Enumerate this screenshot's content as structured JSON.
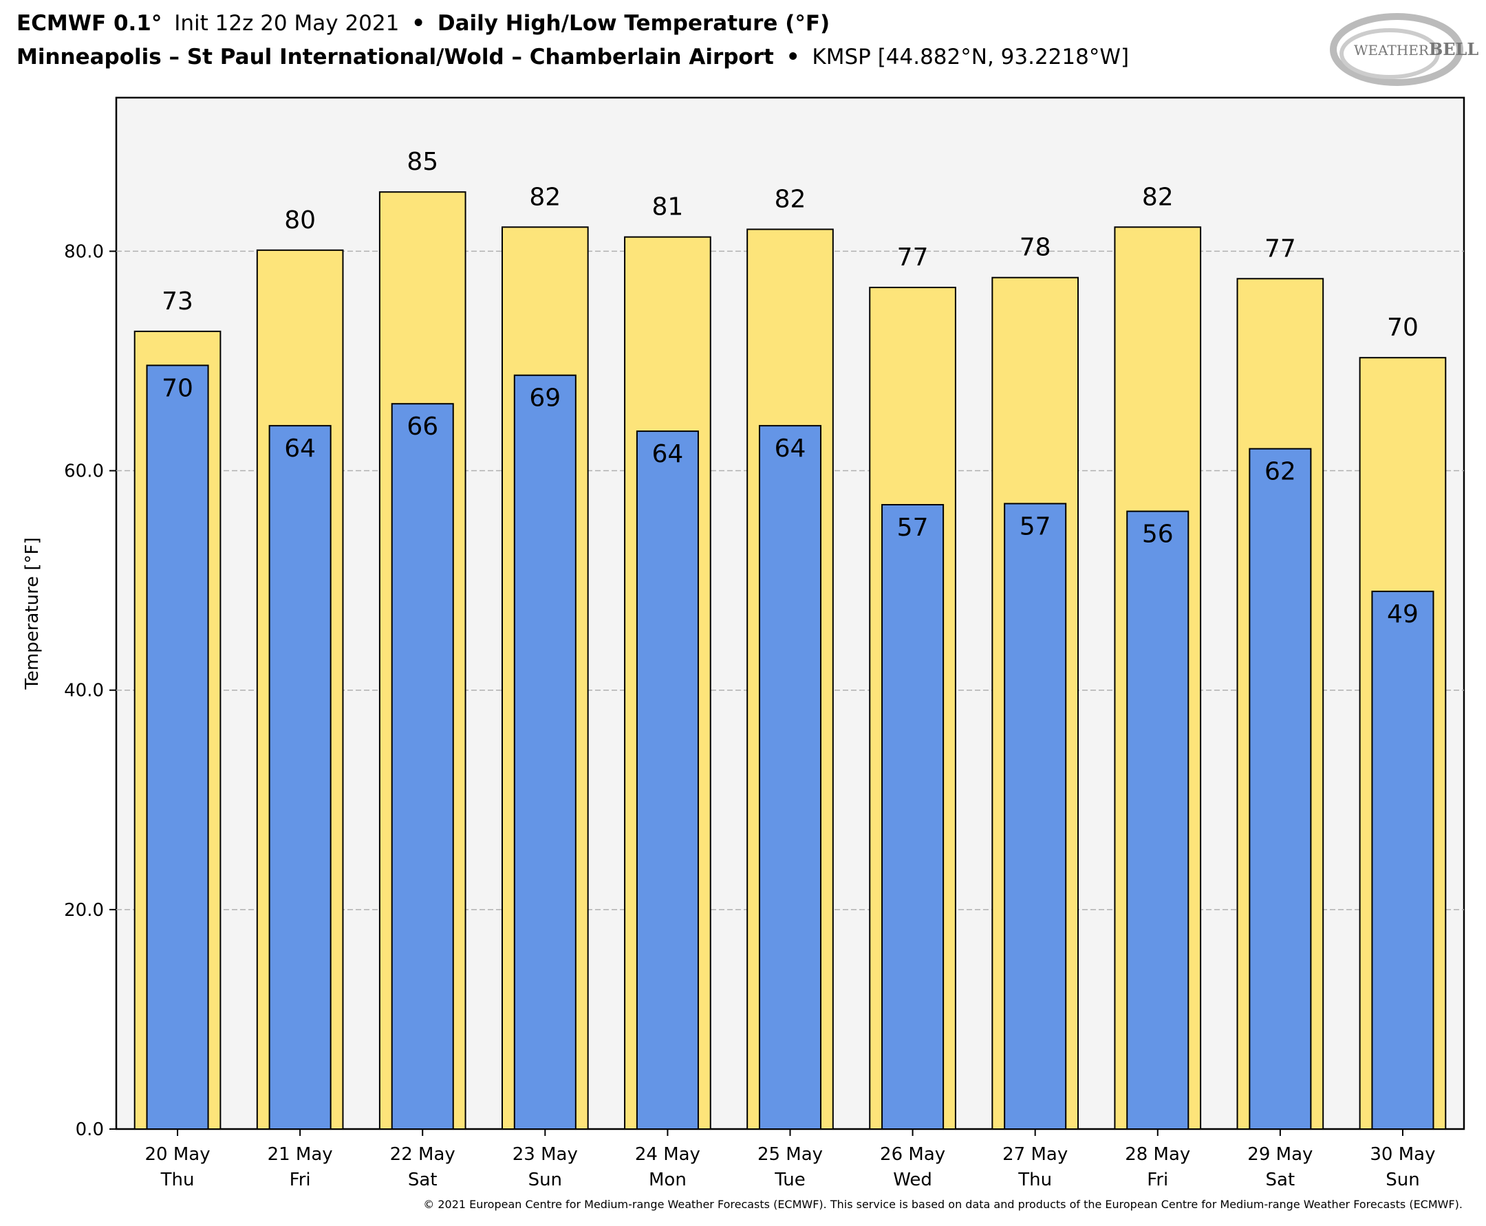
{
  "header": {
    "model": "ECMWF 0.1°",
    "init": "Init 12z 20 May 2021",
    "sep": "•",
    "product": "Daily High/Low Temperature (°F)",
    "station": "Minneapolis – St Paul International/Wold – Chamberlain Airport",
    "station_id": "KMSP [44.882°N, 93.2218°W]"
  },
  "logo": {
    "text_left": "WEATHER",
    "text_right": "BELL"
  },
  "footer": {
    "copyright": "© 2021 European Centre for Medium-range Weather Forecasts (ECMWF). This service is based on data and products of the European Centre for Medium-range Weather Forecasts (ECMWF)."
  },
  "chart_data": {
    "type": "bar",
    "title": "Daily High/Low Temperature (°F)",
    "xlabel": "",
    "ylabel": "Temperature [°F]",
    "ylim": [
      0,
      94
    ],
    "yticks": [
      0,
      20,
      40,
      60,
      80
    ],
    "ytick_labels": [
      "0.0",
      "20.0",
      "40.0",
      "60.0",
      "80.0"
    ],
    "grid": true,
    "categories": [
      {
        "date": "20 May",
        "day": "Thu"
      },
      {
        "date": "21 May",
        "day": "Fri"
      },
      {
        "date": "22 May",
        "day": "Sat"
      },
      {
        "date": "23 May",
        "day": "Sun"
      },
      {
        "date": "24 May",
        "day": "Mon"
      },
      {
        "date": "25 May",
        "day": "Tue"
      },
      {
        "date": "26 May",
        "day": "Wed"
      },
      {
        "date": "27 May",
        "day": "Thu"
      },
      {
        "date": "28 May",
        "day": "Fri"
      },
      {
        "date": "29 May",
        "day": "Sat"
      },
      {
        "date": "30 May",
        "day": "Sun"
      }
    ],
    "series": [
      {
        "name": "High",
        "color": "#fde47a",
        "values": [
          72.7,
          80.1,
          85.4,
          82.2,
          81.3,
          82.0,
          76.7,
          77.6,
          82.2,
          77.5,
          70.3
        ],
        "labels": [
          "73",
          "80",
          "85",
          "82",
          "81",
          "82",
          "77",
          "78",
          "82",
          "77",
          "70"
        ]
      },
      {
        "name": "Low",
        "color": "#6495e6",
        "values": [
          69.6,
          64.1,
          66.1,
          68.7,
          63.6,
          64.1,
          56.9,
          57.0,
          56.3,
          62.0,
          49.0
        ],
        "labels": [
          "70",
          "64",
          "66",
          "69",
          "64",
          "64",
          "57",
          "57",
          "56",
          "62",
          "49"
        ]
      }
    ]
  }
}
